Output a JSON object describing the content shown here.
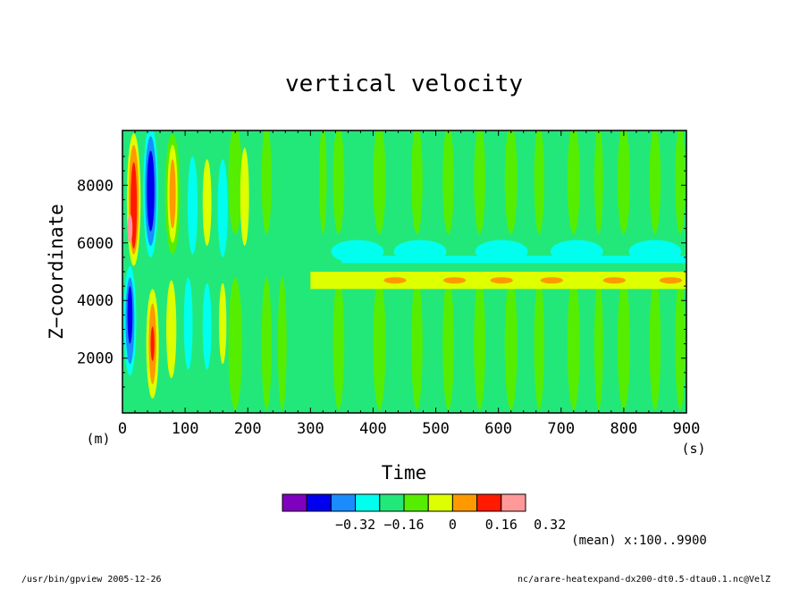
{
  "chart_data": {
    "type": "heatmap",
    "title": "vertical velocity",
    "xlabel": "Time",
    "ylabel": "Z−coordinate",
    "x_unit": "(s)",
    "y_unit": "(m)",
    "xlim": [
      0,
      900
    ],
    "ylim": [
      100,
      9900
    ],
    "x_ticks": [
      "0",
      "100",
      "200",
      "300",
      "400",
      "500",
      "600",
      "700",
      "800",
      "900"
    ],
    "y_ticks": [
      "2000",
      "4000",
      "6000",
      "8000"
    ],
    "legend": {
      "levels": [
        -0.48,
        -0.4,
        -0.32,
        -0.24,
        -0.16,
        -0.08,
        0,
        0.08,
        0.16,
        0.24,
        0.32,
        0.4
      ],
      "labels": [
        "−0.32",
        "−0.16",
        "0",
        "0.16",
        "0.32"
      ],
      "colors": [
        "#7f00bf",
        "#0000ee",
        "#1a8cff",
        "#00ffee",
        "#22e87a",
        "#55ee00",
        "#ddff00",
        "#ff9900",
        "#ff1a00",
        "#ff9999"
      ]
    },
    "annotation": "(mean) x:100..9900",
    "footer_left": "/usr/bin/gpview  2005-12-26",
    "footer_right": "nc/arare-heatexpand-dx200-dt0.5-dtau0.1.nc@VelZ"
  }
}
